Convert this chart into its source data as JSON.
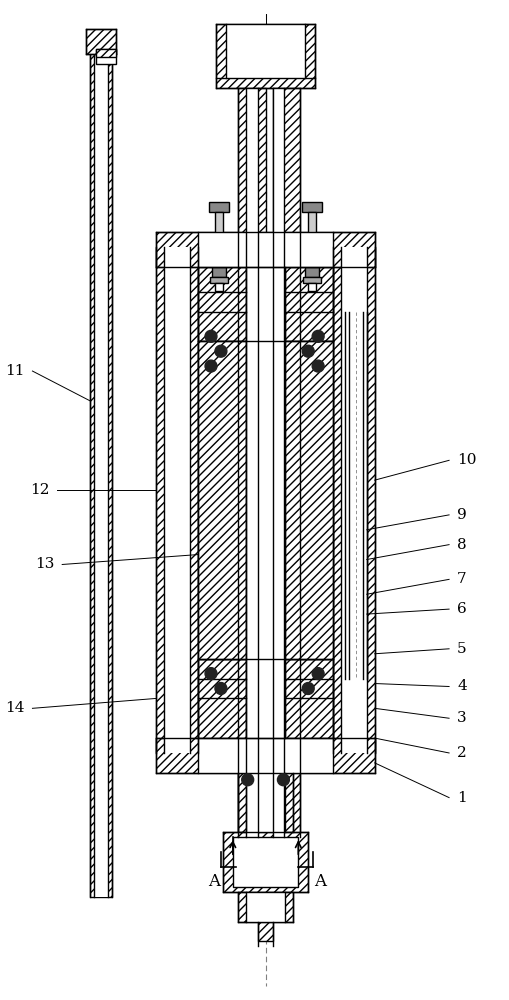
{
  "bg_color": "#ffffff",
  "fig_width": 5.09,
  "fig_height": 10.0,
  "dpi": 100
}
